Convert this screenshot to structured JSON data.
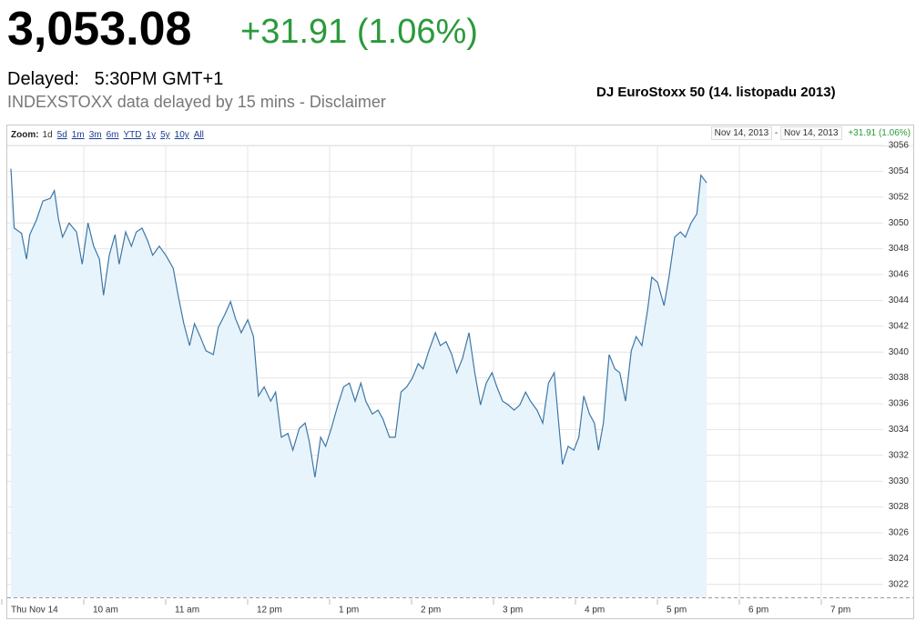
{
  "header": {
    "price": "3,053.08",
    "change": "+31.91 (1.06%)",
    "delayed_label": "Delayed:",
    "delayed_time": "5:30PM GMT+1",
    "note": "INDEXSTOXX data delayed by 15 mins - Disclaimer"
  },
  "toolbar": {
    "zoom_label": "Zoom:",
    "zoom_options": [
      "1d",
      "5d",
      "1m",
      "3m",
      "6m",
      "YTD",
      "1y",
      "5y",
      "10y",
      "All"
    ],
    "range_start": "Nov 14, 2013",
    "range_sep": "-",
    "range_end": "Nov 14, 2013",
    "range_change": "+31.91 (1.06%)"
  },
  "chart_data": {
    "type": "area",
    "title": "DJ EuroStoxx 50 (14. listopadu 2013)",
    "x": [
      9.0,
      9.04,
      9.13,
      9.19,
      9.23,
      9.31,
      9.39,
      9.48,
      9.53,
      9.58,
      9.63,
      9.71,
      9.8,
      9.87,
      9.94,
      10.01,
      10.08,
      10.13,
      10.2,
      10.27,
      10.32,
      10.4,
      10.47,
      10.53,
      10.6,
      10.67,
      10.73,
      10.81,
      10.89,
      10.98,
      11.04,
      11.11,
      11.18,
      11.24,
      11.31,
      11.38,
      11.47,
      11.53,
      11.61,
      11.68,
      11.74,
      11.81,
      11.89,
      11.96,
      12.02,
      12.09,
      12.17,
      12.23,
      12.3,
      12.38,
      12.44,
      12.52,
      12.59,
      12.64,
      12.71,
      12.78,
      12.84,
      12.91,
      12.99,
      13.06,
      13.13,
      13.2,
      13.27,
      13.33,
      13.41,
      13.48,
      13.54,
      13.62,
      13.69,
      13.76,
      13.83,
      13.9,
      13.97,
      14.03,
      14.1,
      14.18,
      14.24,
      14.31,
      14.38,
      14.44,
      14.51,
      14.59,
      14.66,
      14.73,
      14.8,
      14.87,
      14.93,
      15.0,
      15.07,
      15.14,
      15.21,
      15.28,
      15.34,
      15.42,
      15.49,
      15.56,
      15.63,
      15.69,
      15.73,
      15.8,
      15.87,
      15.93,
      15.99,
      16.06,
      16.12,
      16.17,
      16.23,
      16.3,
      16.37,
      16.43,
      16.5,
      16.57,
      16.63,
      16.7,
      16.77,
      16.82,
      16.89,
      16.97,
      17.03,
      17.1,
      17.17,
      17.23,
      17.3,
      17.37,
      17.42,
      17.49
    ],
    "series": [
      {
        "name": "DJ EuroStoxx 50",
        "color": "#3d77a6",
        "fill": "#e8f4fc",
        "values": [
          3054.2,
          3049.6,
          3049.2,
          3047.2,
          3049.1,
          3050.2,
          3051.7,
          3051.9,
          3052.5,
          3050.3,
          3048.9,
          3050.0,
          3049.3,
          3046.8,
          3050.0,
          3048.2,
          3047.2,
          3044.4,
          3047.5,
          3049.1,
          3046.8,
          3049.3,
          3048.2,
          3049.3,
          3049.6,
          3048.6,
          3047.5,
          3048.2,
          3047.5,
          3046.5,
          3044.4,
          3042.2,
          3040.5,
          3042.2,
          3041.2,
          3040.1,
          3039.8,
          3041.9,
          3042.9,
          3043.9,
          3042.6,
          3041.5,
          3042.5,
          3041.2,
          3036.6,
          3037.3,
          3036.2,
          3036.9,
          3033.4,
          3033.7,
          3032.4,
          3034.1,
          3034.5,
          3033.1,
          3030.3,
          3033.4,
          3032.7,
          3034.1,
          3035.9,
          3037.3,
          3037.6,
          3036.2,
          3037.6,
          3036.2,
          3035.2,
          3035.5,
          3034.8,
          3033.4,
          3033.4,
          3036.9,
          3037.3,
          3038.0,
          3039.1,
          3038.7,
          3040.1,
          3041.5,
          3040.5,
          3040.8,
          3039.8,
          3038.4,
          3039.5,
          3041.5,
          3038.4,
          3035.9,
          3037.6,
          3038.4,
          3037.3,
          3036.2,
          3035.9,
          3035.5,
          3035.9,
          3036.9,
          3036.2,
          3035.5,
          3034.5,
          3037.6,
          3038.4,
          3034.1,
          3031.3,
          3032.7,
          3032.4,
          3033.4,
          3036.6,
          3035.2,
          3034.5,
          3032.4,
          3034.5,
          3039.8,
          3038.7,
          3038.4,
          3036.2,
          3040.1,
          3041.2,
          3040.5,
          3043.3,
          3045.8,
          3045.4,
          3043.6,
          3045.8,
          3048.9,
          3049.3,
          3048.9,
          3050.0,
          3050.7,
          3053.7,
          3053.1
        ]
      }
    ],
    "xlim": [
      9,
      20
    ],
    "xticks": [
      {
        "value": 9,
        "label": "Thu Nov 14"
      },
      {
        "value": 10,
        "label": "10 am"
      },
      {
        "value": 11,
        "label": "11 am"
      },
      {
        "value": 12,
        "label": "12 pm"
      },
      {
        "value": 13,
        "label": "1 pm"
      },
      {
        "value": 14,
        "label": "2 pm"
      },
      {
        "value": 15,
        "label": "3 pm"
      },
      {
        "value": 16,
        "label": "4 pm"
      },
      {
        "value": 17,
        "label": "5 pm"
      },
      {
        "value": 18,
        "label": "6 pm"
      },
      {
        "value": 19,
        "label": "7 pm"
      }
    ],
    "ylim": [
      3021,
      3056
    ],
    "yticks": [
      3022,
      3024,
      3026,
      3028,
      3030,
      3032,
      3034,
      3036,
      3038,
      3040,
      3042,
      3044,
      3046,
      3048,
      3050,
      3052,
      3054,
      3056
    ],
    "grid": true
  }
}
